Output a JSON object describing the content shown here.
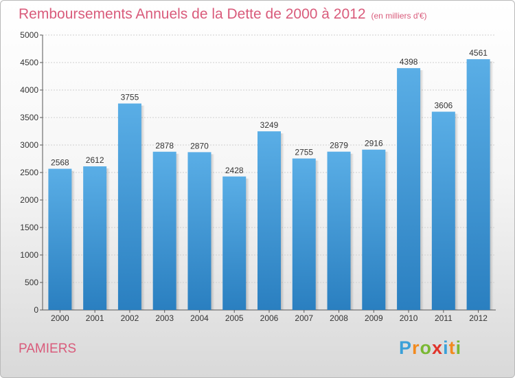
{
  "title": "Remboursements Annuels de la Dette de 2000 à 2012",
  "subtitle": "(en milliers d'€)",
  "city": "PAMIERS",
  "logo": {
    "letters": [
      "P",
      "r",
      "o",
      "x",
      "i",
      "t",
      "i"
    ],
    "colors": [
      "#3aa0d8",
      "#f28a1e",
      "#7ab833",
      "#e0342b",
      "#3aa0d8",
      "#f28a1e",
      "#7ab833"
    ]
  },
  "colors": {
    "bar_top": "#5aaee6",
    "bar_bottom": "#2a7fc0",
    "title": "#d95b7b"
  },
  "chart_data": {
    "type": "bar",
    "categories": [
      "2000",
      "2001",
      "2002",
      "2003",
      "2004",
      "2005",
      "2006",
      "2007",
      "2008",
      "2009",
      "2010",
      "2011",
      "2012"
    ],
    "values": [
      2568,
      2612,
      3755,
      2878,
      2870,
      2428,
      3249,
      2755,
      2879,
      2916,
      4398,
      3606,
      4561
    ],
    "title": "Remboursements Annuels de la Dette de 2000 à 2012",
    "xlabel": "",
    "ylabel": "",
    "ylim": [
      0,
      5000
    ],
    "yticks": [
      0,
      500,
      1000,
      1500,
      2000,
      2500,
      3000,
      3500,
      4000,
      4500,
      5000
    ],
    "grid": true
  }
}
